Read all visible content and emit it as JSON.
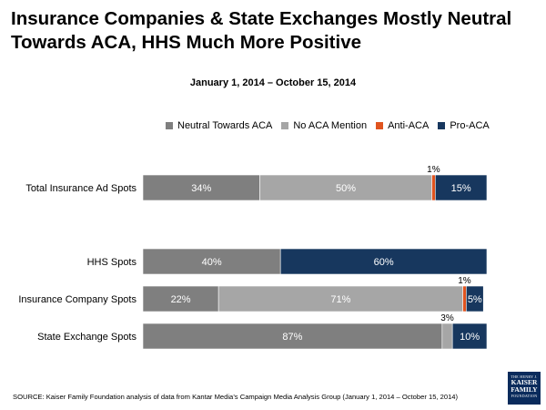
{
  "title": "Insurance Companies & State Exchanges Mostly Neutral Towards ACA, HHS Much More Positive",
  "subtitle": "January 1, 2014 – October 15, 2014",
  "source": "SOURCE: Kaiser Family Foundation analysis of data from Kantar Media’s Campaign Media Analysis Group (January 1, 2014 – October 15, 2014)",
  "logo": {
    "line1": "THE HENRY J.",
    "line2a": "KAISER",
    "line2b": "FAMILY",
    "line3": "FOUNDATION"
  },
  "chart_data": {
    "type": "bar",
    "orientation": "horizontal",
    "stacked": true,
    "title": "Insurance Companies & State Exchanges Mostly Neutral Towards ACA, HHS Much More Positive",
    "subtitle": "January 1, 2014 – October 15, 2014",
    "xlim": [
      0,
      100
    ],
    "legend_position": "top",
    "categories": [
      "Total Insurance Ad Spots",
      "HHS Spots",
      "Insurance Company Spots",
      "State Exchange Spots"
    ],
    "series": [
      {
        "name": "Neutral Towards ACA",
        "color": "#7f7f7f",
        "values": [
          34,
          40,
          22,
          87
        ],
        "labels": [
          "34%",
          "40%",
          "22%",
          "87%"
        ]
      },
      {
        "name": "No ACA Mention",
        "color": "#a6a6a6",
        "values": [
          50,
          0,
          71,
          3
        ],
        "labels": [
          "50%",
          "",
          "71%",
          "3%"
        ]
      },
      {
        "name": "Anti-ACA",
        "color": "#e0541f",
        "values": [
          1,
          0,
          1,
          0
        ],
        "labels": [
          "1%",
          "",
          "1%",
          ""
        ]
      },
      {
        "name": "Pro-ACA",
        "color": "#17375e",
        "values": [
          15,
          60,
          5,
          10
        ],
        "labels": [
          "15%",
          "60%",
          "5%",
          "10%"
        ]
      }
    ]
  }
}
